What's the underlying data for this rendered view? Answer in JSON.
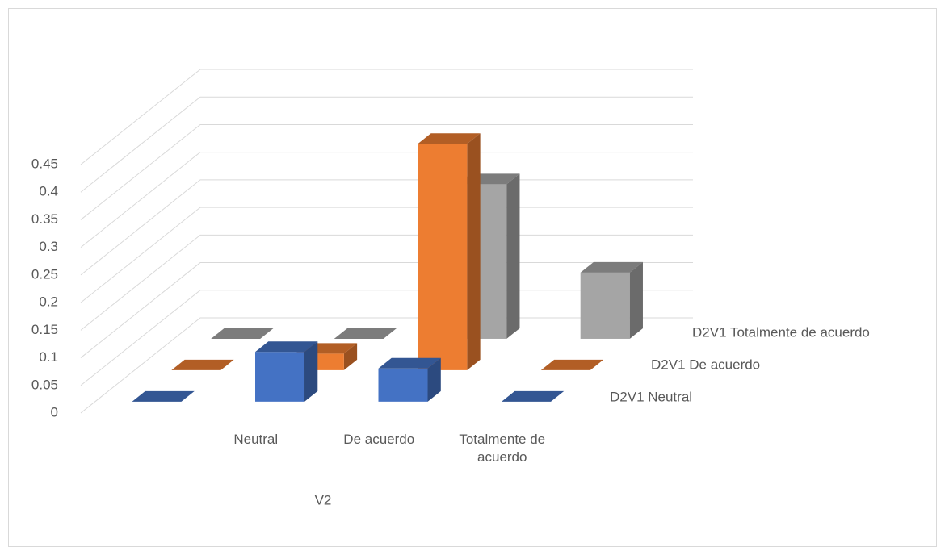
{
  "chart_data": {
    "type": "bar3d",
    "categories": [
      null,
      "Neutral",
      "De acuerdo",
      "Totalmente de acuerdo"
    ],
    "x_label": "V2",
    "series": [
      {
        "name": "D2V1 Neutral",
        "color": "#4472c4",
        "values": [
          0,
          0.09,
          0.06,
          0
        ]
      },
      {
        "name": "D2V1 De acuerdo",
        "color": "#ed7d31",
        "values": [
          0,
          0.03,
          0.41,
          0
        ]
      },
      {
        "name": "D2V1 Totalmente de acuerdo",
        "color": "#a5a5a5",
        "values": [
          0,
          0,
          0.28,
          0.12
        ]
      }
    ],
    "ylim": [
      0,
      0.45
    ],
    "yticks": [
      0,
      0.05,
      0.1,
      0.15,
      0.2,
      0.25,
      0.3,
      0.35,
      0.4,
      0.45
    ],
    "grid": true
  }
}
